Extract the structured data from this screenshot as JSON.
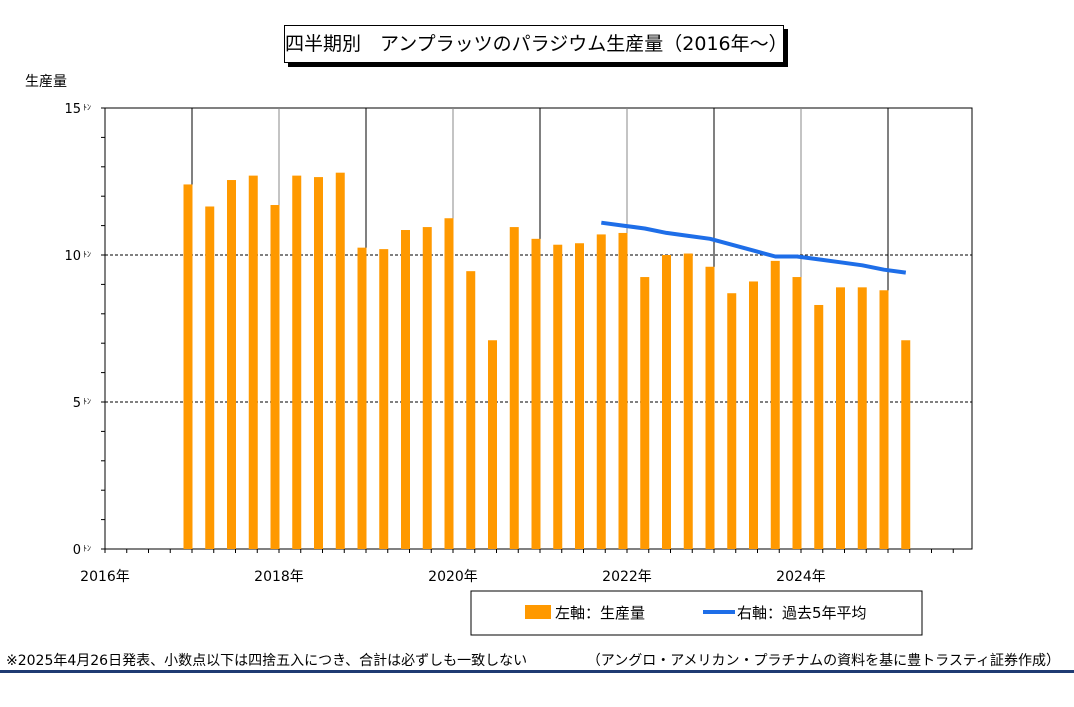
{
  "title": "四半期別　アンプラッツのパラジウム生産量（2016年～）",
  "footnote": "※2025年4月26日発表、小数点以下は四捨五入につき、合計は必ずしも一致しない",
  "source": "（アングロ・アメリカン・プラチナムの資料を基に豊トラスティ証券作成）",
  "colors": {
    "bar": "#ff9900",
    "line": "#1e6ee8",
    "bottom_rule": "#1f3b73"
  },
  "chart_data": {
    "type": "bar",
    "ylabel": "生産量",
    "ylim": [
      0,
      15
    ],
    "y_ticks": [
      {
        "value": 0,
        "label": "0ﾄﾝ"
      },
      {
        "value": 5,
        "label": "5ﾄﾝ"
      },
      {
        "value": 10,
        "label": "10ﾄﾝ"
      },
      {
        "value": 15,
        "label": "15ﾄﾝ"
      }
    ],
    "x_tick_labels": [
      "2016年",
      "2018年",
      "2020年",
      "2022年",
      "2024年"
    ],
    "grid": true,
    "legend_position": "bottom-right",
    "series": [
      {
        "name": "左軸：生産量",
        "type": "bar",
        "values": [
          12.4,
          11.65,
          12.55,
          12.7,
          11.7,
          12.7,
          12.65,
          12.8,
          10.25,
          10.2,
          10.85,
          10.95,
          11.25,
          9.45,
          7.1,
          10.95,
          10.55,
          10.35,
          10.4,
          10.7,
          10.75,
          9.25,
          10.0,
          10.05,
          9.6,
          8.7,
          9.1,
          9.8,
          9.25,
          8.3,
          8.9,
          8.9,
          8.8,
          7.1
        ]
      },
      {
        "name": "右軸：過去5年平均",
        "type": "line",
        "start_index": 19,
        "values": [
          11.1,
          11.0,
          10.9,
          10.75,
          10.65,
          10.55,
          10.35,
          10.15,
          9.95,
          9.95,
          9.85,
          9.75,
          9.65,
          9.5,
          9.4
        ]
      }
    ]
  }
}
